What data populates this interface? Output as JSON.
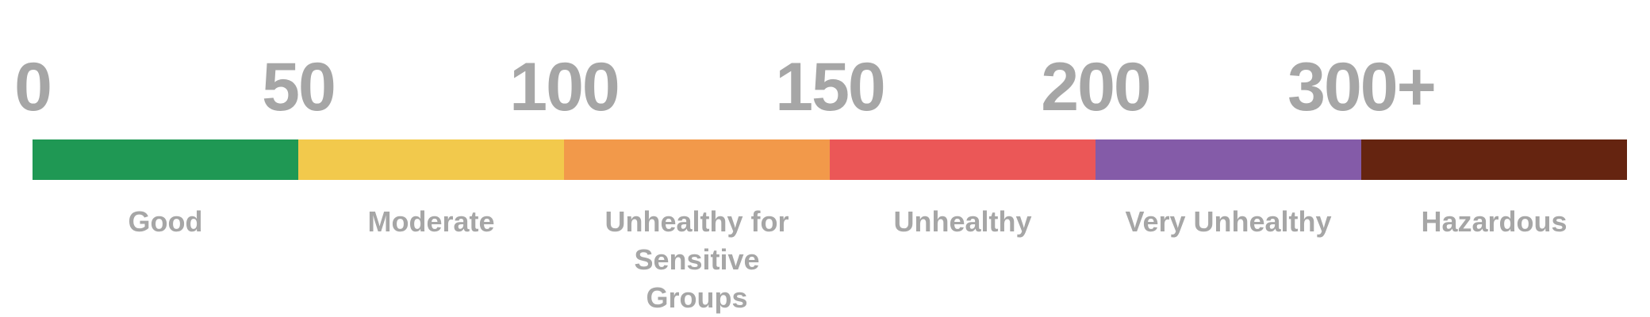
{
  "scale": {
    "breakpoints": [
      "0",
      "50",
      "100",
      "150",
      "200",
      "300+"
    ],
    "levels": [
      {
        "label": "Good",
        "color": "#1f9854"
      },
      {
        "label": "Moderate",
        "color": "#f2c94c"
      },
      {
        "label": "Unhealthy for Sensitive Groups",
        "color": "#f2994a"
      },
      {
        "label": "Unhealthy",
        "color": "#eb5757"
      },
      {
        "label": "Very Unhealthy",
        "color": "#845ba8"
      },
      {
        "label": "Hazardous",
        "color": "#652410"
      }
    ]
  }
}
